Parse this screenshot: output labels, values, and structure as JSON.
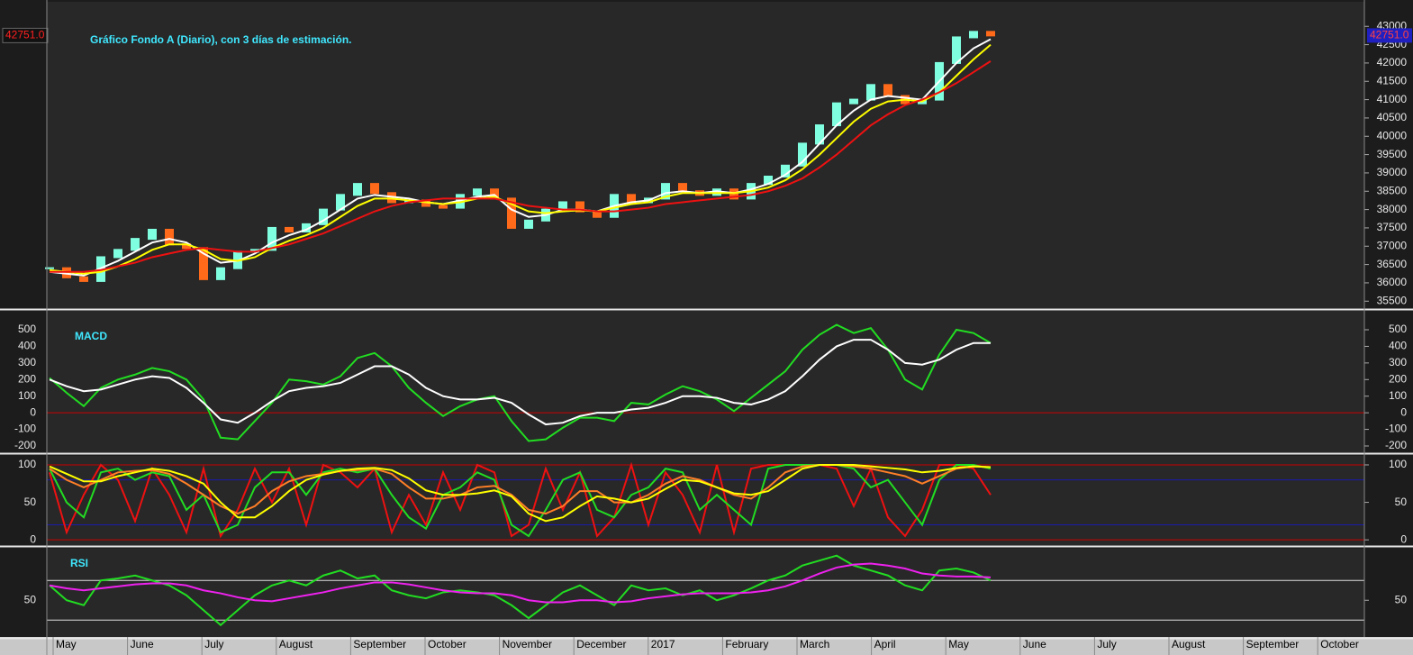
{
  "chart_data": [
    {
      "type": "line",
      "title": "Gráfico Fondo A (Diario), con 3 días de estimación.",
      "ylim": [
        35310,
        43670
      ],
      "yticks": [
        35500,
        36000,
        36500,
        37000,
        37500,
        38000,
        38500,
        39000,
        39500,
        40000,
        40500,
        41000,
        41500,
        42000,
        42500,
        43000
      ],
      "last_value_label": "42751.0",
      "series": [
        {
          "style": "candles",
          "color": "#80ffe0",
          "down_color": "#ff6a1a",
          "values": [
            36400,
            36150,
            36050,
            36700,
            36900,
            37200,
            37450,
            37050,
            36950,
            36100,
            36400,
            36850,
            36900,
            37500,
            37400,
            37600,
            38000,
            38400,
            38700,
            38450,
            38200,
            38250,
            38100,
            38050,
            38400,
            38550,
            38300,
            37500,
            37700,
            38000,
            38200,
            37950,
            37800,
            38400,
            38200,
            38300,
            38700,
            38500,
            38400,
            38550,
            38300,
            38700,
            38900,
            39200,
            39800,
            40300,
            40900,
            41000,
            41400,
            41100,
            40900,
            41000,
            42000,
            42700,
            42850,
            42751
          ]
        },
        {
          "color": "#ffffff",
          "values": [
            36300,
            36250,
            36200,
            36400,
            36600,
            36850,
            37100,
            37200,
            37100,
            36800,
            36550,
            36600,
            36800,
            37100,
            37300,
            37450,
            37700,
            38000,
            38300,
            38400,
            38350,
            38300,
            38200,
            38150,
            38250,
            38350,
            38400,
            38000,
            37800,
            37850,
            38000,
            38000,
            37950,
            38100,
            38200,
            38250,
            38450,
            38500,
            38450,
            38500,
            38450,
            38550,
            38700,
            38950,
            39300,
            39800,
            40300,
            40700,
            41000,
            41100,
            41050,
            41000,
            41500,
            42000,
            42400,
            42650
          ]
        },
        {
          "color": "#ffff00",
          "values": [
            36350,
            36300,
            36250,
            36300,
            36450,
            36650,
            36900,
            37050,
            37050,
            36900,
            36650,
            36600,
            36700,
            36950,
            37150,
            37300,
            37500,
            37800,
            38100,
            38300,
            38300,
            38250,
            38200,
            38150,
            38200,
            38300,
            38350,
            38150,
            37950,
            37900,
            37950,
            37980,
            37950,
            38050,
            38150,
            38200,
            38350,
            38450,
            38450,
            38450,
            38450,
            38500,
            38600,
            38800,
            39100,
            39500,
            39950,
            40400,
            40750,
            40950,
            41000,
            40950,
            41200,
            41650,
            42100,
            42500
          ]
        },
        {
          "color": "#ee1111",
          "values": [
            36300,
            36300,
            36300,
            36350,
            36450,
            36550,
            36700,
            36800,
            36900,
            36950,
            36900,
            36850,
            36850,
            36950,
            37050,
            37200,
            37350,
            37550,
            37750,
            37950,
            38100,
            38200,
            38250,
            38300,
            38300,
            38300,
            38300,
            38200,
            38100,
            38050,
            38000,
            38000,
            37950,
            37950,
            38000,
            38050,
            38150,
            38200,
            38250,
            38300,
            38350,
            38400,
            38500,
            38650,
            38850,
            39150,
            39500,
            39900,
            40300,
            40600,
            40850,
            41000,
            41200,
            41450,
            41750,
            42050
          ]
        }
      ]
    },
    {
      "type": "line",
      "title": "MACD",
      "ylim": [
        -238,
        614
      ],
      "yticks": [
        -200,
        -100,
        0,
        100,
        200,
        300,
        400,
        500
      ],
      "levels": [
        {
          "value": 0,
          "color": "#cc0000"
        }
      ],
      "series": [
        {
          "color": "#22dd22",
          "values": [
            210,
            120,
            40,
            150,
            200,
            230,
            270,
            250,
            200,
            80,
            -150,
            -160,
            -50,
            60,
            200,
            190,
            170,
            220,
            330,
            360,
            280,
            150,
            60,
            -20,
            40,
            80,
            100,
            -50,
            -170,
            -160,
            -90,
            -30,
            -30,
            -50,
            60,
            50,
            110,
            160,
            130,
            80,
            10,
            90,
            170,
            250,
            380,
            470,
            530,
            480,
            510,
            380,
            200,
            140,
            350,
            500,
            480,
            420
          ]
        },
        {
          "color": "#ffffff",
          "values": [
            200,
            160,
            130,
            140,
            170,
            200,
            220,
            210,
            150,
            60,
            -40,
            -60,
            0,
            70,
            130,
            150,
            160,
            180,
            230,
            280,
            280,
            230,
            150,
            100,
            80,
            80,
            90,
            60,
            -10,
            -70,
            -60,
            -20,
            0,
            0,
            20,
            30,
            60,
            100,
            100,
            90,
            60,
            50,
            80,
            130,
            220,
            320,
            400,
            440,
            440,
            380,
            300,
            290,
            320,
            380,
            420,
            420
          ]
        }
      ]
    },
    {
      "type": "line",
      "ylim": [
        -7,
        112
      ],
      "yticks": [
        0,
        50,
        100
      ],
      "levels": [
        {
          "value": 100,
          "color": "#cc0000"
        },
        {
          "value": 80,
          "color": "#1a1aaa"
        },
        {
          "value": 20,
          "color": "#1a1aaa"
        },
        {
          "value": 0,
          "color": "#cc0000"
        }
      ],
      "series": [
        {
          "color": "#ee1111",
          "values": [
            90,
            10,
            60,
            100,
            80,
            25,
            95,
            60,
            10,
            95,
            5,
            40,
            95,
            50,
            95,
            20,
            100,
            90,
            70,
            95,
            10,
            60,
            20,
            90,
            40,
            100,
            90,
            5,
            20,
            95,
            40,
            90,
            5,
            30,
            100,
            20,
            90,
            60,
            10,
            100,
            10,
            95,
            100,
            100,
            100,
            100,
            95,
            45,
            95,
            30,
            5,
            40,
            100,
            100,
            95,
            60
          ]
        },
        {
          "color": "#22dd22",
          "values": [
            95,
            50,
            30,
            90,
            95,
            80,
            90,
            85,
            40,
            60,
            10,
            20,
            70,
            90,
            90,
            60,
            90,
            95,
            90,
            95,
            60,
            30,
            15,
            60,
            70,
            90,
            80,
            20,
            5,
            40,
            80,
            90,
            40,
            30,
            60,
            70,
            95,
            90,
            40,
            60,
            40,
            20,
            95,
            100,
            100,
            100,
            100,
            95,
            70,
            80,
            50,
            20,
            80,
            100,
            100,
            95
          ]
        },
        {
          "color": "#ff7f27",
          "values": [
            95,
            80,
            70,
            80,
            90,
            92,
            93,
            88,
            75,
            60,
            45,
            35,
            45,
            65,
            78,
            85,
            88,
            92,
            93,
            95,
            88,
            70,
            55,
            55,
            60,
            70,
            72,
            60,
            40,
            35,
            45,
            65,
            65,
            50,
            50,
            60,
            75,
            85,
            80,
            70,
            60,
            55,
            70,
            90,
            98,
            100,
            100,
            98,
            95,
            90,
            85,
            75,
            85,
            95,
            98,
            97
          ]
        },
        {
          "color": "#ffff00",
          "values": [
            98,
            88,
            78,
            78,
            85,
            90,
            95,
            92,
            85,
            75,
            50,
            30,
            30,
            45,
            65,
            80,
            87,
            92,
            95,
            96,
            93,
            82,
            66,
            60,
            60,
            62,
            66,
            58,
            35,
            25,
            30,
            45,
            58,
            55,
            50,
            55,
            68,
            80,
            78,
            70,
            62,
            60,
            65,
            80,
            95,
            100,
            100,
            100,
            98,
            96,
            94,
            90,
            92,
            96,
            98,
            97
          ]
        }
      ]
    },
    {
      "type": "line",
      "title": "RSI",
      "ylim": [
        13,
        102
      ],
      "yticks": [
        50
      ],
      "levels": [
        {
          "value": 70,
          "color": "#dddddd"
        },
        {
          "value": 30,
          "color": "#dddddd"
        }
      ],
      "x_labels": [
        "May",
        "June",
        "July",
        "August",
        "September",
        "October",
        "November",
        "December",
        "2017",
        "February",
        "March",
        "April",
        "May",
        "June",
        "July",
        "August",
        "September",
        "October"
      ],
      "series": [
        {
          "color": "#22dd22",
          "values": [
            65,
            50,
            45,
            70,
            72,
            75,
            70,
            65,
            55,
            40,
            25,
            40,
            55,
            65,
            70,
            65,
            75,
            80,
            72,
            75,
            60,
            55,
            52,
            58,
            60,
            58,
            55,
            45,
            32,
            45,
            58,
            65,
            55,
            45,
            65,
            60,
            62,
            55,
            60,
            50,
            55,
            62,
            70,
            75,
            85,
            90,
            95,
            85,
            80,
            75,
            65,
            60,
            80,
            82,
            78,
            70
          ]
        },
        {
          "color": "#ee22ee",
          "values": [
            65,
            62,
            60,
            62,
            64,
            66,
            67,
            67,
            65,
            60,
            57,
            53,
            50,
            49,
            52,
            55,
            58,
            62,
            65,
            68,
            68,
            66,
            63,
            60,
            58,
            57,
            57,
            55,
            50,
            48,
            48,
            50,
            50,
            48,
            49,
            52,
            54,
            56,
            57,
            57,
            57,
            58,
            60,
            64,
            70,
            77,
            83,
            86,
            87,
            85,
            82,
            77,
            75,
            74,
            74,
            73
          ]
        }
      ]
    }
  ]
}
